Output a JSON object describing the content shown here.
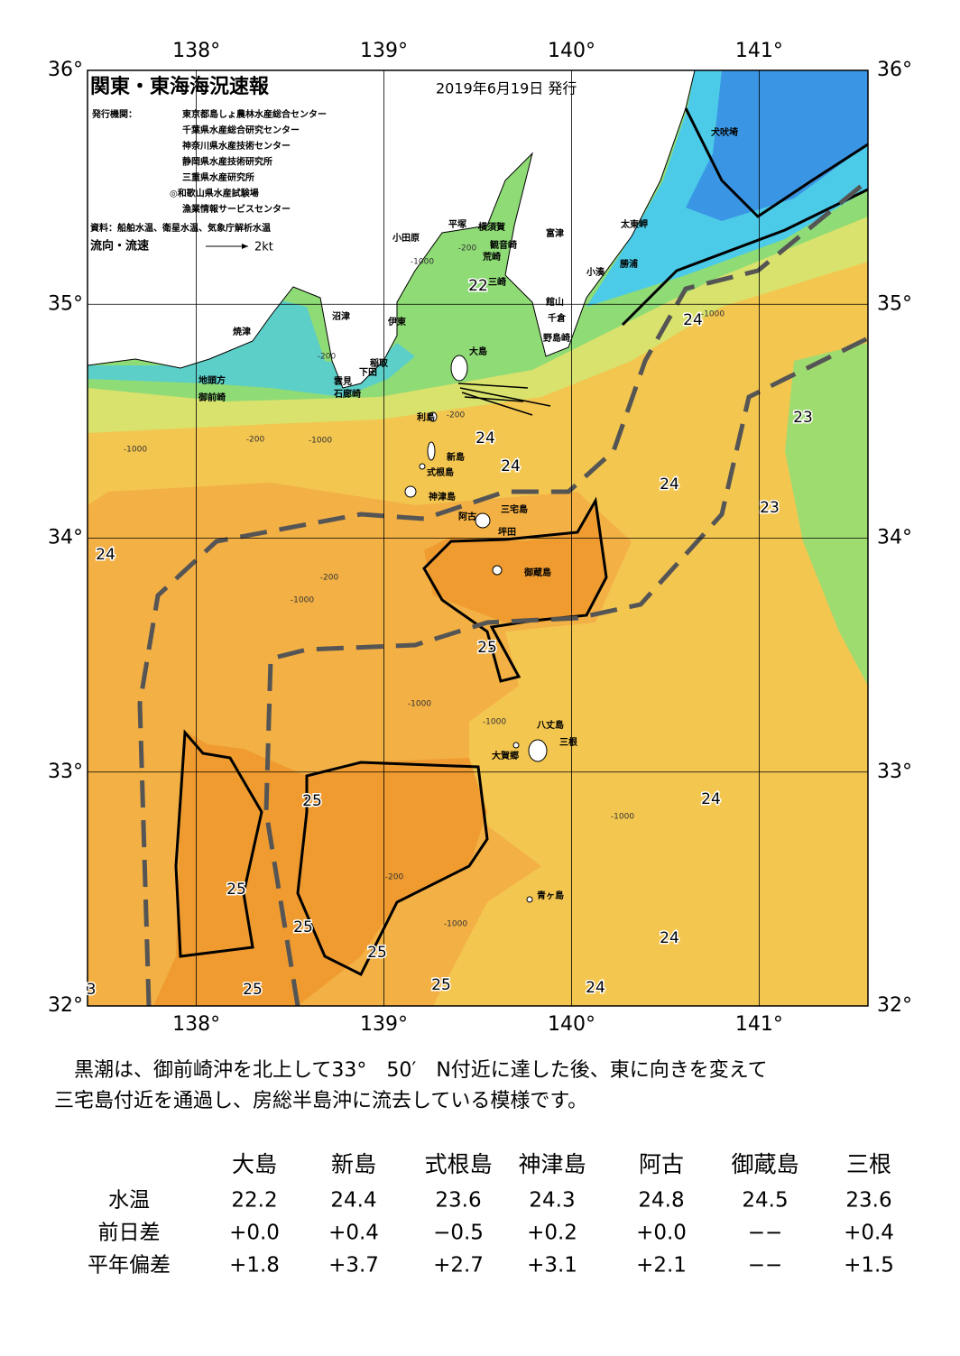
{
  "header": {
    "title": "関東・東海海況速報",
    "date": "2019年6月19日 発行",
    "issuer_label": "発行機関：",
    "issuers": [
      "東京都島しょ農林水産総合センター",
      "千葉県水産総合研究センター",
      "神奈川県水産技術センター",
      "静岡県水産技術研究所",
      "三重県水産研究所",
      "◎和歌山県水産試験場",
      "漁業情報サービスセンター"
    ],
    "sources": "資料：船舶水温、衛星水温、気象庁解析水温",
    "legend_label": "流向・流速",
    "legend_speed": "2kt"
  },
  "map": {
    "xlim": [
      137.42,
      141.58
    ],
    "ylim": [
      32,
      36
    ],
    "xticks": [
      {
        "value": 138,
        "label": "138°"
      },
      {
        "value": 139,
        "label": "139°"
      },
      {
        "value": 140,
        "label": "140°"
      },
      {
        "value": 141,
        "label": "141°"
      }
    ],
    "yticks": [
      {
        "value": 32,
        "label": "32°"
      },
      {
        "value": 33,
        "label": "33°"
      },
      {
        "value": 34,
        "label": "34°"
      },
      {
        "value": 35,
        "label": "35°"
      },
      {
        "value": 36,
        "label": "36°"
      }
    ],
    "places": [
      "犬吠埼",
      "太東岬",
      "勝浦",
      "小湊",
      "富津",
      "横須賀",
      "平塚",
      "小田原",
      "観音崎",
      "荒崎",
      "三崎",
      "館山",
      "千倉",
      "野島崎",
      "沼津",
      "伊東",
      "焼津",
      "大島",
      "稲取",
      "下田",
      "雲見",
      "石廊崎",
      "地頭方",
      "御前崎",
      "利島",
      "新島",
      "式根島",
      "神津島",
      "三宅島",
      "阿古",
      "坪田",
      "御蔵島",
      "八丈島",
      "三根",
      "大賀郷",
      "青ヶ島"
    ],
    "temp_labels": [
      "22",
      "24",
      "23",
      "24",
      "24",
      "24",
      "23",
      "24",
      "25",
      "25",
      "24",
      "25",
      "25",
      "25",
      "24",
      "25",
      "25",
      "24",
      "3"
    ],
    "depth_labels": [
      "-200",
      "-1000",
      "-1000",
      "-200",
      "-1000",
      "-200",
      "-200",
      "-1000",
      "-1000",
      "-200",
      "-1000",
      "-1000",
      "-1000",
      "-200",
      "-1000"
    ]
  },
  "description": [
    "　黒潮は、御前崎沖を北上して33°　50′　N付近に達した後、東に向きを変えて",
    "三宅島付近を通過し、房総半島沖に流去している模様です。"
  ],
  "table": {
    "columns": [
      "大島",
      "新島",
      "式根島",
      "神津島",
      "阿古",
      "御蔵島",
      "三根"
    ],
    "rows": [
      [
        "水温",
        "22.2",
        "24.4",
        "23.6",
        "24.3",
        "24.8",
        "24.5",
        "23.6"
      ],
      [
        "前日差",
        "+0.0",
        "+0.4",
        "−0.5",
        "+0.2",
        "+0.0",
        "−−",
        "+0.4"
      ],
      [
        "平年偏差",
        "+1.8",
        "+3.7",
        "+2.7",
        "+3.1",
        "+2.1",
        "−−",
        "+1.5"
      ]
    ]
  }
}
